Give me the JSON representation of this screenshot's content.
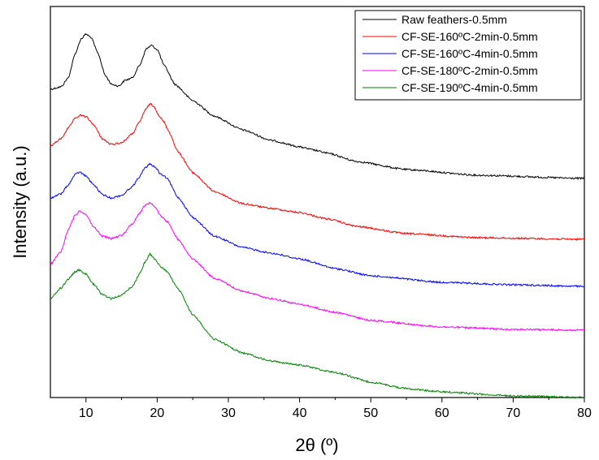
{
  "chart_data": {
    "type": "line",
    "xlabel": "2θ (º)",
    "ylabel": "Intensity (a.u.)",
    "xlim": [
      5,
      80
    ],
    "x_ticks": [
      "10",
      "20",
      "30",
      "40",
      "50",
      "60",
      "70",
      "80"
    ],
    "y_tick_labels_shown": false,
    "legend_position": "top-right",
    "series": [
      {
        "name": "Raw feathers-0.5mm",
        "color": "#000000",
        "points": [
          [
            5,
            102
          ],
          [
            6.5,
            99
          ],
          [
            7.5,
            88
          ],
          [
            8.5,
            58
          ],
          [
            9.3,
            40
          ],
          [
            10,
            34
          ],
          [
            10.7,
            38
          ],
          [
            11.7,
            58
          ],
          [
            12.7,
            85
          ],
          [
            13.6,
            96
          ],
          [
            14.6,
            98
          ],
          [
            15.5,
            91
          ],
          [
            16.5,
            88
          ],
          [
            17.5,
            73
          ],
          [
            18.5,
            52
          ],
          [
            19.2,
            48
          ],
          [
            20,
            53
          ],
          [
            21,
            73
          ],
          [
            22.5,
            96
          ],
          [
            25,
            116
          ],
          [
            28,
            135
          ],
          [
            32,
            152
          ],
          [
            36,
            165
          ],
          [
            40,
            173
          ],
          [
            42,
            177
          ],
          [
            44,
            181
          ],
          [
            48,
            191
          ],
          [
            55,
            201
          ],
          [
            65,
            208
          ],
          [
            80,
            212
          ]
        ]
      },
      {
        "name": "CF-SE-160ºC-2min-0.5mm",
        "color": "#ff0000",
        "points": [
          [
            5,
            172
          ],
          [
            6.5,
            163
          ],
          [
            7.5,
            150
          ],
          [
            8.5,
            138
          ],
          [
            9.2,
            134
          ],
          [
            10,
            136
          ],
          [
            11,
            145
          ],
          [
            12.3,
            163
          ],
          [
            13.5,
            170
          ],
          [
            15,
            168
          ],
          [
            16.5,
            157
          ],
          [
            17.5,
            143
          ],
          [
            18.3,
            128
          ],
          [
            19,
            120
          ],
          [
            19.6,
            124
          ],
          [
            20.3,
            135
          ],
          [
            21,
            143
          ],
          [
            21.5,
            152
          ],
          [
            23,
            180
          ],
          [
            25,
            205
          ],
          [
            28,
            228
          ],
          [
            32,
            243
          ],
          [
            36,
            249
          ],
          [
            40,
            254
          ],
          [
            44,
            262
          ],
          [
            48,
            271
          ],
          [
            55,
            280
          ],
          [
            65,
            285
          ],
          [
            80,
            287
          ]
        ]
      },
      {
        "name": "CF-SE-160ºC-4min-0.5mm",
        "color": "#0000ff",
        "points": [
          [
            5,
            236
          ],
          [
            6.5,
            231
          ],
          [
            7.5,
            220
          ],
          [
            8.5,
            207
          ],
          [
            9.1,
            204
          ],
          [
            10,
            209
          ],
          [
            11,
            219
          ],
          [
            12.3,
            232
          ],
          [
            13.5,
            236
          ],
          [
            15,
            233
          ],
          [
            16.5,
            222
          ],
          [
            17.5,
            210
          ],
          [
            18.3,
            199
          ],
          [
            19,
            194
          ],
          [
            19.7,
            198
          ],
          [
            20.5,
            207
          ],
          [
            21.3,
            211
          ],
          [
            23,
            236
          ],
          [
            25,
            260
          ],
          [
            28,
            283
          ],
          [
            32,
            297
          ],
          [
            36,
            304
          ],
          [
            40,
            311
          ],
          [
            45,
            323
          ],
          [
            50,
            332
          ],
          [
            60,
            340
          ],
          [
            70,
            343
          ],
          [
            80,
            345
          ]
        ]
      },
      {
        "name": "CF-SE-180ºC-2min-0.5mm",
        "color": "#ff00ff",
        "points": [
          [
            5,
            318
          ],
          [
            6.5,
            302
          ],
          [
            7.5,
            275
          ],
          [
            8.5,
            257
          ],
          [
            9.1,
            252
          ],
          [
            10,
            256
          ],
          [
            11,
            271
          ],
          [
            12.3,
            283
          ],
          [
            13.5,
            286
          ],
          [
            15,
            282
          ],
          [
            16.5,
            268
          ],
          [
            17.5,
            255
          ],
          [
            18.3,
            245
          ],
          [
            19,
            242
          ],
          [
            19.6,
            246
          ],
          [
            20.5,
            258
          ],
          [
            21.5,
            266
          ],
          [
            23,
            288
          ],
          [
            25,
            311
          ],
          [
            28,
            335
          ],
          [
            32,
            351
          ],
          [
            36,
            360
          ],
          [
            40,
            367
          ],
          [
            45,
            377
          ],
          [
            50,
            387
          ],
          [
            60,
            395
          ],
          [
            70,
            398
          ],
          [
            80,
            399
          ]
        ]
      },
      {
        "name": "CF-SE-190ºC-4min-0.5mm",
        "color": "#008000",
        "points": [
          [
            5,
            360
          ],
          [
            6.5,
            347
          ],
          [
            7.5,
            336
          ],
          [
            8.5,
            327
          ],
          [
            9,
            325
          ],
          [
            10,
            330
          ],
          [
            11,
            342
          ],
          [
            12.3,
            355
          ],
          [
            13.5,
            360
          ],
          [
            15,
            356
          ],
          [
            16.5,
            345
          ],
          [
            17.5,
            330
          ],
          [
            18.3,
            315
          ],
          [
            19,
            305
          ],
          [
            19.7,
            312
          ],
          [
            20.5,
            321
          ],
          [
            21.3,
            326
          ],
          [
            23,
            349
          ],
          [
            25,
            380
          ],
          [
            28,
            410
          ],
          [
            32,
            427
          ],
          [
            36,
            437
          ],
          [
            40,
            442
          ],
          [
            45,
            451
          ],
          [
            50,
            463
          ],
          [
            55,
            471
          ],
          [
            60,
            475
          ],
          [
            70,
            480
          ],
          [
            80,
            482
          ]
        ]
      }
    ]
  }
}
